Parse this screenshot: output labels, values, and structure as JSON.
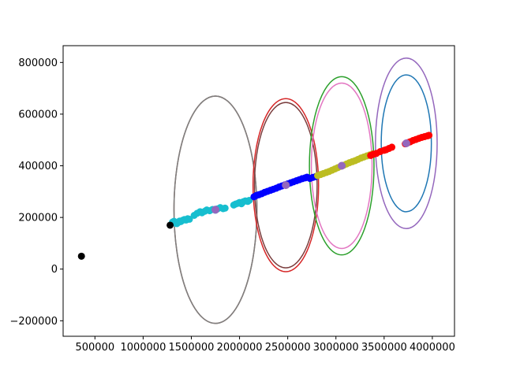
{
  "chart_data": {
    "type": "scatter",
    "title": "",
    "xlabel": "",
    "ylabel": "",
    "xlim": [
      170000,
      4230000
    ],
    "ylim": [
      -260000,
      865000
    ],
    "grid": false,
    "legend": "none",
    "x_ticks": [
      500000,
      1000000,
      1500000,
      2000000,
      2500000,
      3000000,
      3500000,
      4000000
    ],
    "x_tick_labels": [
      "500000",
      "1000000",
      "1500000",
      "2000000",
      "2500000",
      "3000000",
      "3500000",
      "4000000"
    ],
    "y_ticks": [
      -200000,
      0,
      200000,
      400000,
      600000,
      800000
    ],
    "y_tick_labels": [
      "−200000",
      "0",
      "200000",
      "400000",
      "600000",
      "800000"
    ],
    "black_points": [
      {
        "x": 360000,
        "y": 50000
      },
      {
        "x": 1280000,
        "y": 170000
      }
    ],
    "clusters": [
      {
        "name": "cyan",
        "color": "#17becf",
        "x_range": [
          1300000,
          2100000
        ],
        "y_range": [
          178000,
          265000
        ],
        "points": [
          [
            1305000,
            182000
          ],
          [
            1320000,
            185000
          ],
          [
            1335000,
            178000
          ],
          [
            1350000,
            176000
          ],
          [
            1362000,
            180000
          ],
          [
            1378000,
            186000
          ],
          [
            1392000,
            184000
          ],
          [
            1410000,
            189000
          ],
          [
            1428000,
            192000
          ],
          [
            1445000,
            190000
          ],
          [
            1462000,
            195000
          ],
          [
            1480000,
            193000
          ],
          [
            1530000,
            208000
          ],
          [
            1560000,
            216000
          ],
          [
            1590000,
            222000
          ],
          [
            1610000,
            218000
          ],
          [
            1640000,
            224000
          ],
          [
            1660000,
            229000
          ],
          [
            1690000,
            226000
          ],
          [
            1720000,
            231000
          ],
          [
            1750000,
            228000
          ],
          [
            1770000,
            233000
          ],
          [
            1800000,
            238000
          ],
          [
            1830000,
            234000
          ],
          [
            1850000,
            236000
          ],
          [
            1940000,
            248000
          ],
          [
            1960000,
            252000
          ],
          [
            1985000,
            255000
          ],
          [
            2000000,
            258000
          ],
          [
            2020000,
            253000
          ],
          [
            2040000,
            261000
          ],
          [
            2060000,
            264000
          ],
          [
            2085000,
            262000
          ],
          [
            2100000,
            266000
          ]
        ]
      },
      {
        "name": "blue",
        "color": "#0000ff",
        "x_range": [
          2150000,
          2800000
        ],
        "y_range": [
          278000,
          360000
        ],
        "points": [
          [
            2150000,
            280000
          ],
          [
            2175000,
            285000
          ],
          [
            2200000,
            288000
          ],
          [
            2230000,
            292000
          ],
          [
            2260000,
            297000
          ],
          [
            2290000,
            301000
          ],
          [
            2320000,
            305000
          ],
          [
            2350000,
            309000
          ],
          [
            2380000,
            313000
          ],
          [
            2410000,
            318000
          ],
          [
            2440000,
            322000
          ],
          [
            2470000,
            326000
          ],
          [
            2500000,
            330000
          ],
          [
            2530000,
            334000
          ],
          [
            2560000,
            338000
          ],
          [
            2590000,
            342000
          ],
          [
            2620000,
            346000
          ],
          [
            2650000,
            350000
          ],
          [
            2680000,
            353000
          ],
          [
            2700000,
            356000
          ],
          [
            2730000,
            351000
          ],
          [
            2760000,
            355000
          ],
          [
            2790000,
            358000
          ]
        ]
      },
      {
        "name": "yellow",
        "color": "#bcbd22",
        "x_range": [
          2800000,
          3400000
        ],
        "y_range": [
          362000,
          448000
        ],
        "points": [
          [
            2810000,
            362000
          ],
          [
            2840000,
            366000
          ],
          [
            2870000,
            370000
          ],
          [
            2900000,
            374000
          ],
          [
            2930000,
            378000
          ],
          [
            2960000,
            383000
          ],
          [
            2990000,
            388000
          ],
          [
            3020000,
            393000
          ],
          [
            3050000,
            398000
          ],
          [
            3080000,
            402000
          ],
          [
            3110000,
            407000
          ],
          [
            3140000,
            412000
          ],
          [
            3170000,
            416000
          ],
          [
            3200000,
            420000
          ],
          [
            3230000,
            425000
          ],
          [
            3260000,
            430000
          ],
          [
            3290000,
            434000
          ],
          [
            3320000,
            438000
          ],
          [
            3350000,
            442000
          ],
          [
            3380000,
            446000
          ]
        ]
      },
      {
        "name": "red",
        "color": "#ff0000",
        "x_range": [
          3350000,
          3970000
        ],
        "y_range": [
          440000,
          520000
        ],
        "points": [
          [
            3360000,
            440000
          ],
          [
            3390000,
            445000
          ],
          [
            3420000,
            448000
          ],
          [
            3460000,
            455000
          ],
          [
            3500000,
            460000
          ],
          [
            3520000,
            462000
          ],
          [
            3550000,
            467000
          ],
          [
            3580000,
            472000
          ],
          [
            3720000,
            485000
          ],
          [
            3750000,
            490000
          ],
          [
            3770000,
            493000
          ],
          [
            3800000,
            498000
          ],
          [
            3830000,
            502000
          ],
          [
            3860000,
            506000
          ],
          [
            3890000,
            510000
          ],
          [
            3920000,
            513000
          ],
          [
            3950000,
            516000
          ],
          [
            3965000,
            518000
          ]
        ]
      }
    ],
    "centroids": [
      {
        "name": "centroid-1",
        "color": "#9467bd",
        "x": 1750000,
        "y": 230000
      },
      {
        "name": "centroid-2",
        "color": "#9467bd",
        "x": 2480000,
        "y": 325000
      },
      {
        "name": "centroid-3",
        "color": "#9467bd",
        "x": 3060000,
        "y": 400000
      },
      {
        "name": "centroid-4",
        "color": "#9467bd",
        "x": 3730000,
        "y": 487000
      }
    ],
    "ellipses": [
      {
        "name": "brown-ellipse",
        "color": "#8c564b",
        "cx": 1750000,
        "cy": 230000,
        "rx": 430000,
        "ry": 440000
      },
      {
        "name": "gray-ellipse",
        "color": "#7f7f7f",
        "cx": 1750000,
        "cy": 230000,
        "rx": 430000,
        "ry": 440000
      },
      {
        "name": "red-ellipse",
        "color": "#d62728",
        "cx": 2480000,
        "cy": 325000,
        "rx": 340000,
        "ry": 335000
      },
      {
        "name": "dark-ellipse",
        "color": "#7a3d3d",
        "cx": 2480000,
        "cy": 325000,
        "rx": 325000,
        "ry": 320000
      },
      {
        "name": "green-ellipse",
        "color": "#2ca02c",
        "cx": 3060000,
        "cy": 400000,
        "rx": 335000,
        "ry": 345000
      },
      {
        "name": "pink-ellipse",
        "color": "#e377c2",
        "cx": 3060000,
        "cy": 400000,
        "rx": 315000,
        "ry": 320000
      },
      {
        "name": "purple-ellipse",
        "color": "#9467bd",
        "cx": 3730000,
        "cy": 487000,
        "rx": 320000,
        "ry": 330000
      },
      {
        "name": "blue-ellipse",
        "color": "#1f77b4",
        "cx": 3730000,
        "cy": 487000,
        "rx": 260000,
        "ry": 265000
      }
    ],
    "point_radius": 4.5,
    "centroid_radius": 5
  }
}
